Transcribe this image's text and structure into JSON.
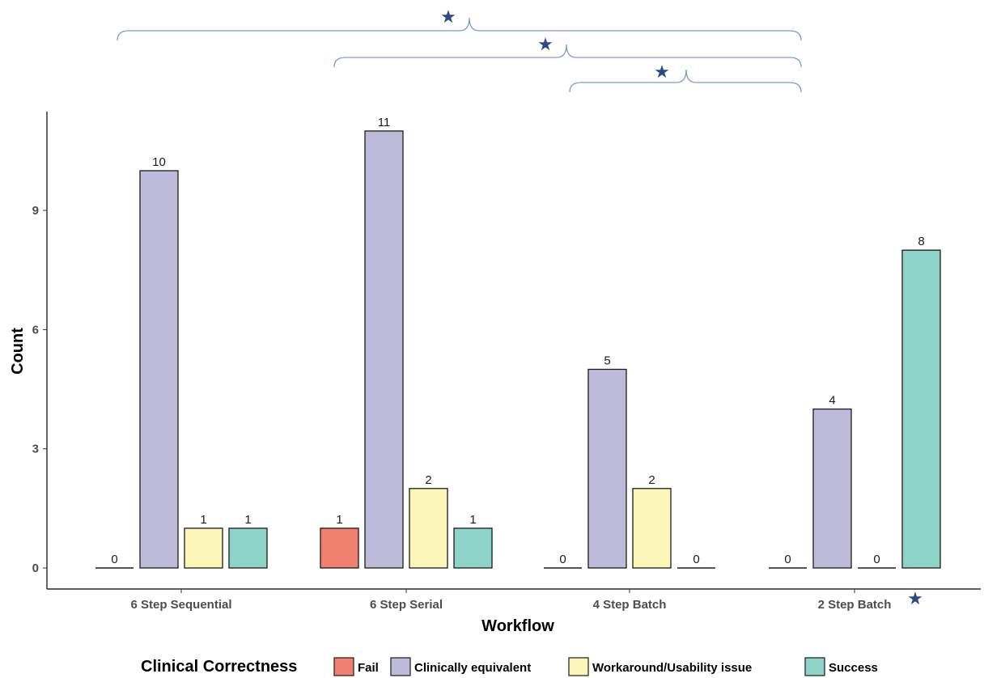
{
  "chart_data": {
    "type": "bar",
    "xlabel": "Workflow",
    "ylabel": "Count",
    "ylim": [
      0,
      11.5
    ],
    "yticks": [
      0,
      3,
      6,
      9
    ],
    "grid": false,
    "legend_placement": "bottom",
    "legend_title": "Clinical Correctness",
    "categories": [
      "6 Step Sequential",
      "6 Step Serial",
      "4 Step Batch",
      "2 Step Batch"
    ],
    "series": [
      {
        "name": "Fail",
        "color": "#f08070",
        "values": [
          0,
          1,
          0,
          0
        ]
      },
      {
        "name": "Clinically equivalent",
        "color": "#bebada",
        "values": [
          10,
          11,
          5,
          4
        ]
      },
      {
        "name": "Workaround/Usability issue",
        "color": "#fcf7b8",
        "values": [
          1,
          2,
          2,
          0
        ]
      },
      {
        "name": "Success",
        "color": "#8dd3c7",
        "values": [
          1,
          1,
          0,
          8
        ]
      }
    ],
    "significance_markers": [
      {
        "symbol": "★",
        "between": [
          "6 Step Sequential",
          "2 Step Batch"
        ]
      },
      {
        "symbol": "★",
        "between": [
          "6 Step Serial",
          "2 Step Batch"
        ]
      },
      {
        "symbol": "★",
        "between": [
          "4 Step Batch",
          "2 Step Batch"
        ]
      },
      {
        "symbol": "★",
        "category": "2 Step Batch"
      }
    ],
    "colors": {
      "bracket": "#7b9bd9",
      "star": "#2a4a8c",
      "bar_stroke": "#1a1a1a"
    }
  }
}
